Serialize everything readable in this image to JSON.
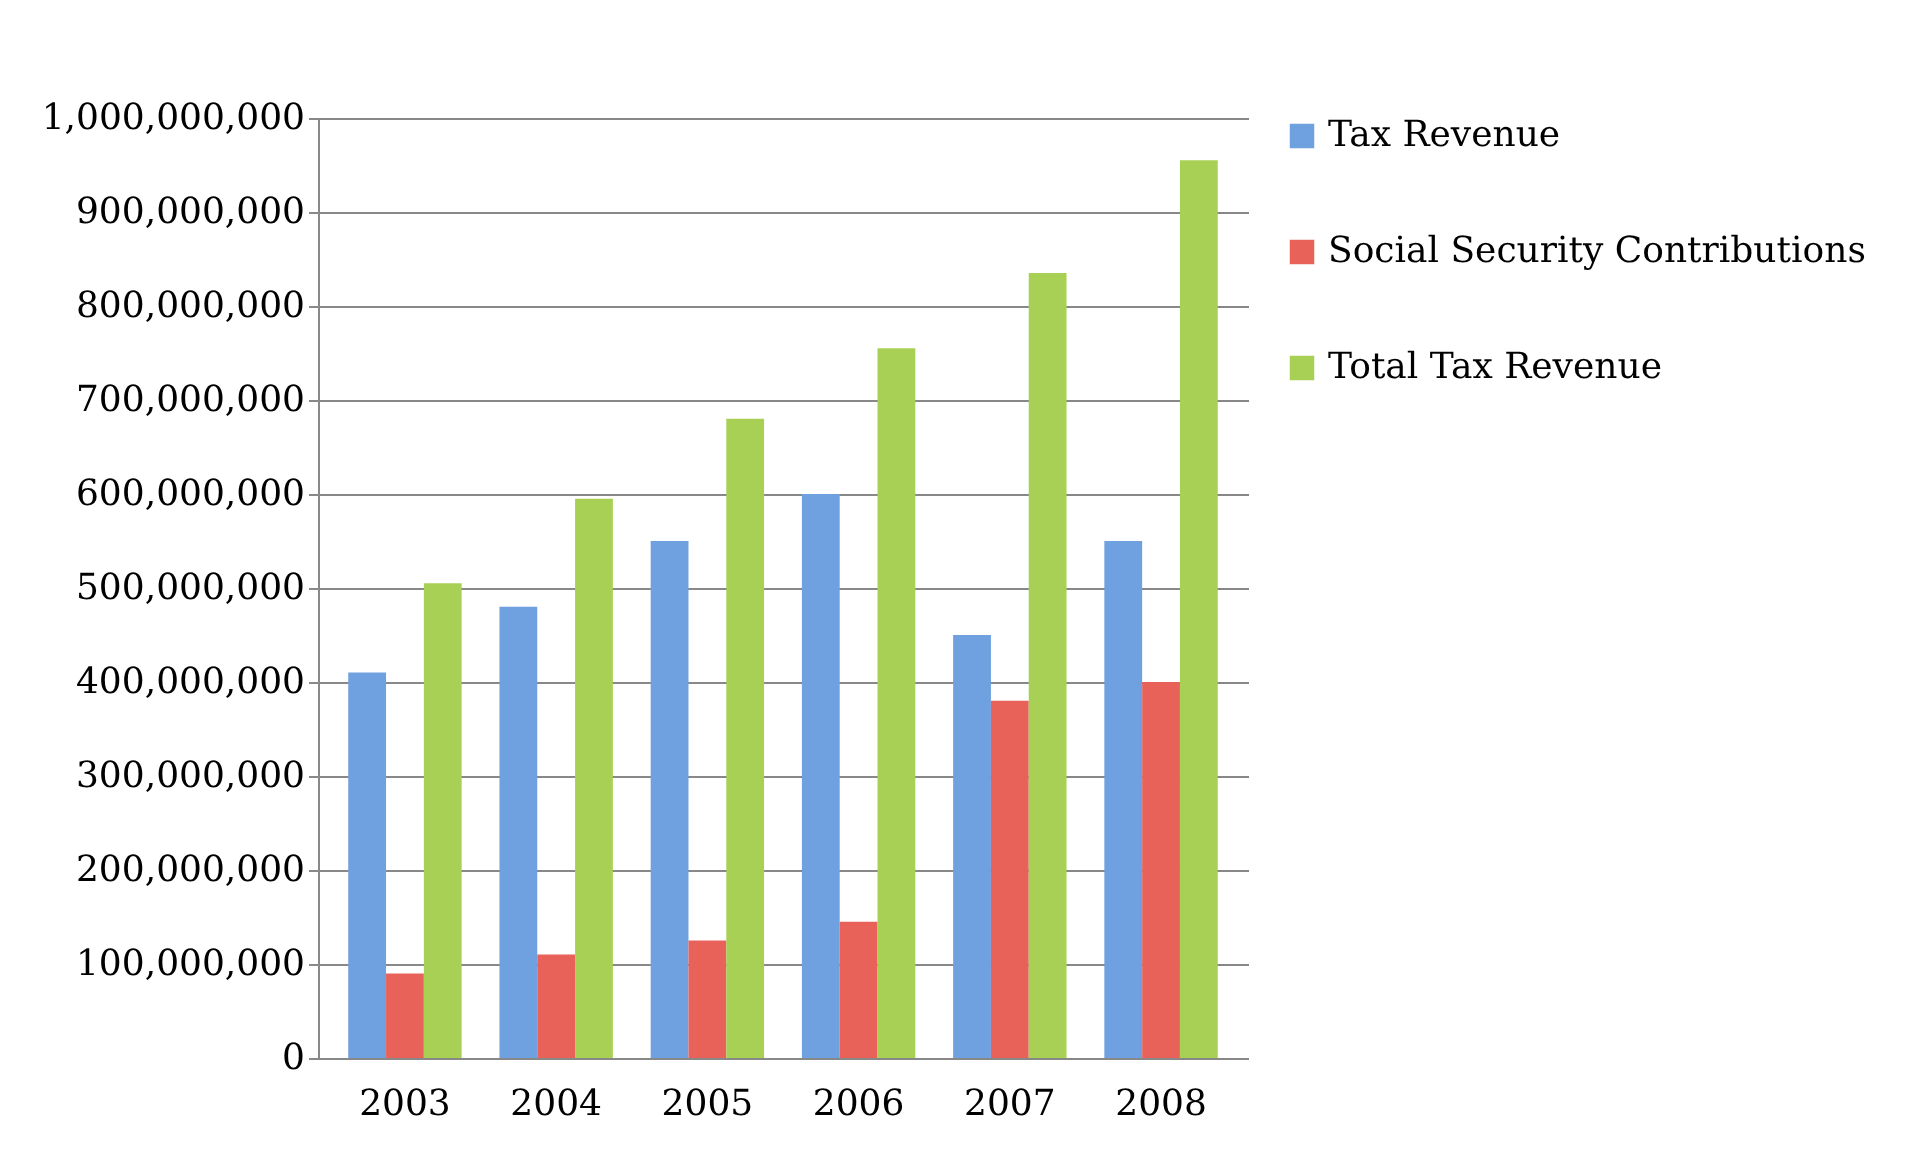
{
  "chart_data": {
    "type": "bar",
    "categories": [
      "2003",
      "2004",
      "2005",
      "2006",
      "2007",
      "2008"
    ],
    "series": [
      {
        "name": "Tax Revenue",
        "color": "#6fa0e0",
        "values": [
          410000000,
          480000000,
          550000000,
          600000000,
          450000000,
          550000000
        ]
      },
      {
        "name": "Social Security Contributions",
        "color": "#e8625a",
        "values": [
          90000000,
          110000000,
          125000000,
          145000000,
          380000000,
          400000000
        ]
      },
      {
        "name": "Total Tax Revenue",
        "color": "#a8d055",
        "values": [
          505000000,
          595000000,
          680000000,
          755000000,
          835000000,
          955000000
        ]
      }
    ],
    "ylim": [
      0,
      1000000000
    ],
    "yticks": [
      0,
      {
        "value": 100000000,
        "label": "100,000,000"
      },
      {
        "value": 200000000,
        "label": "200,000,000"
      },
      {
        "value": 300000000,
        "label": "300,000,000"
      },
      {
        "value": 400000000,
        "label": "400,000,000"
      },
      {
        "value": 500000000,
        "label": "500,000,000"
      },
      {
        "value": 600000000,
        "label": "600,000,000"
      },
      {
        "value": 700000000,
        "label": "700,000,000"
      },
      {
        "value": 800000000,
        "label": "800,000,000"
      },
      {
        "value": 900000000,
        "label": "900,000,000"
      },
      {
        "value": 1000000000,
        "label": "1,000,000,000"
      }
    ],
    "grid": "y",
    "legend": "right"
  }
}
